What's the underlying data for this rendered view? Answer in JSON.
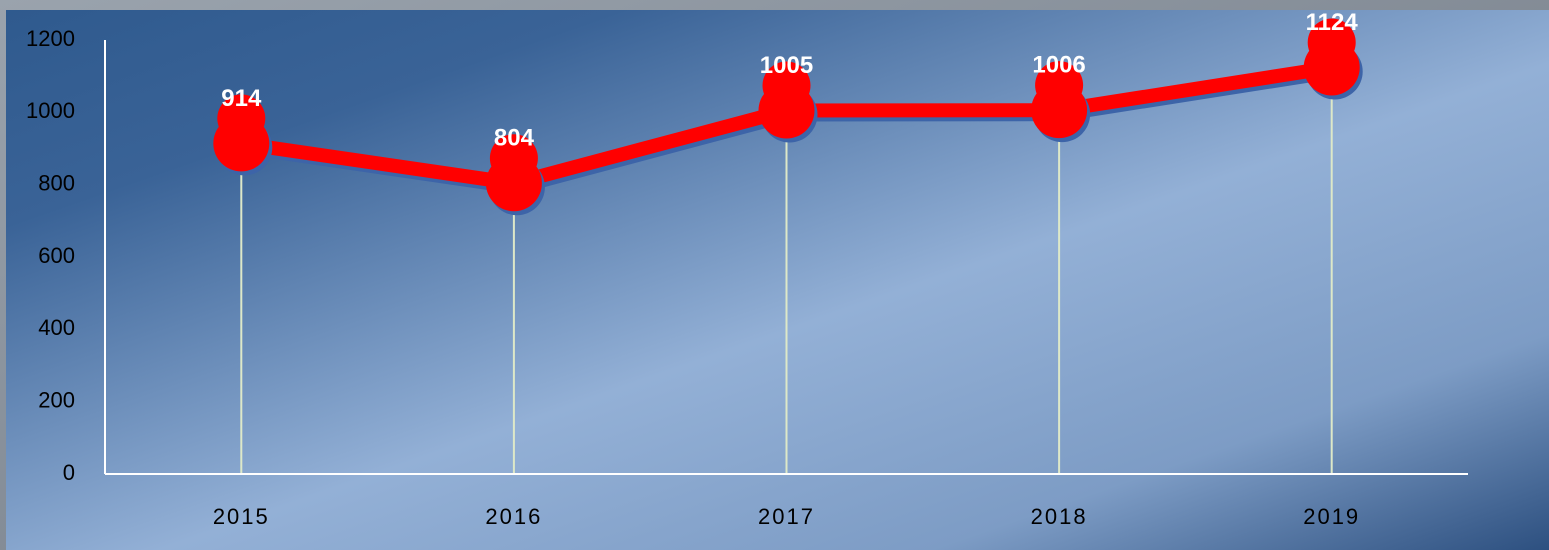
{
  "chart_data": {
    "type": "line",
    "categories": [
      "2015",
      "2016",
      "2017",
      "2018",
      "2019"
    ],
    "values": [
      914,
      804,
      1005,
      1006,
      1124
    ],
    "color": "#ff0000",
    "ylim": [
      0,
      1200
    ],
    "yticks": [
      0,
      200,
      400,
      600,
      800,
      1000,
      1200
    ],
    "grid": false,
    "drop_lines": true
  }
}
